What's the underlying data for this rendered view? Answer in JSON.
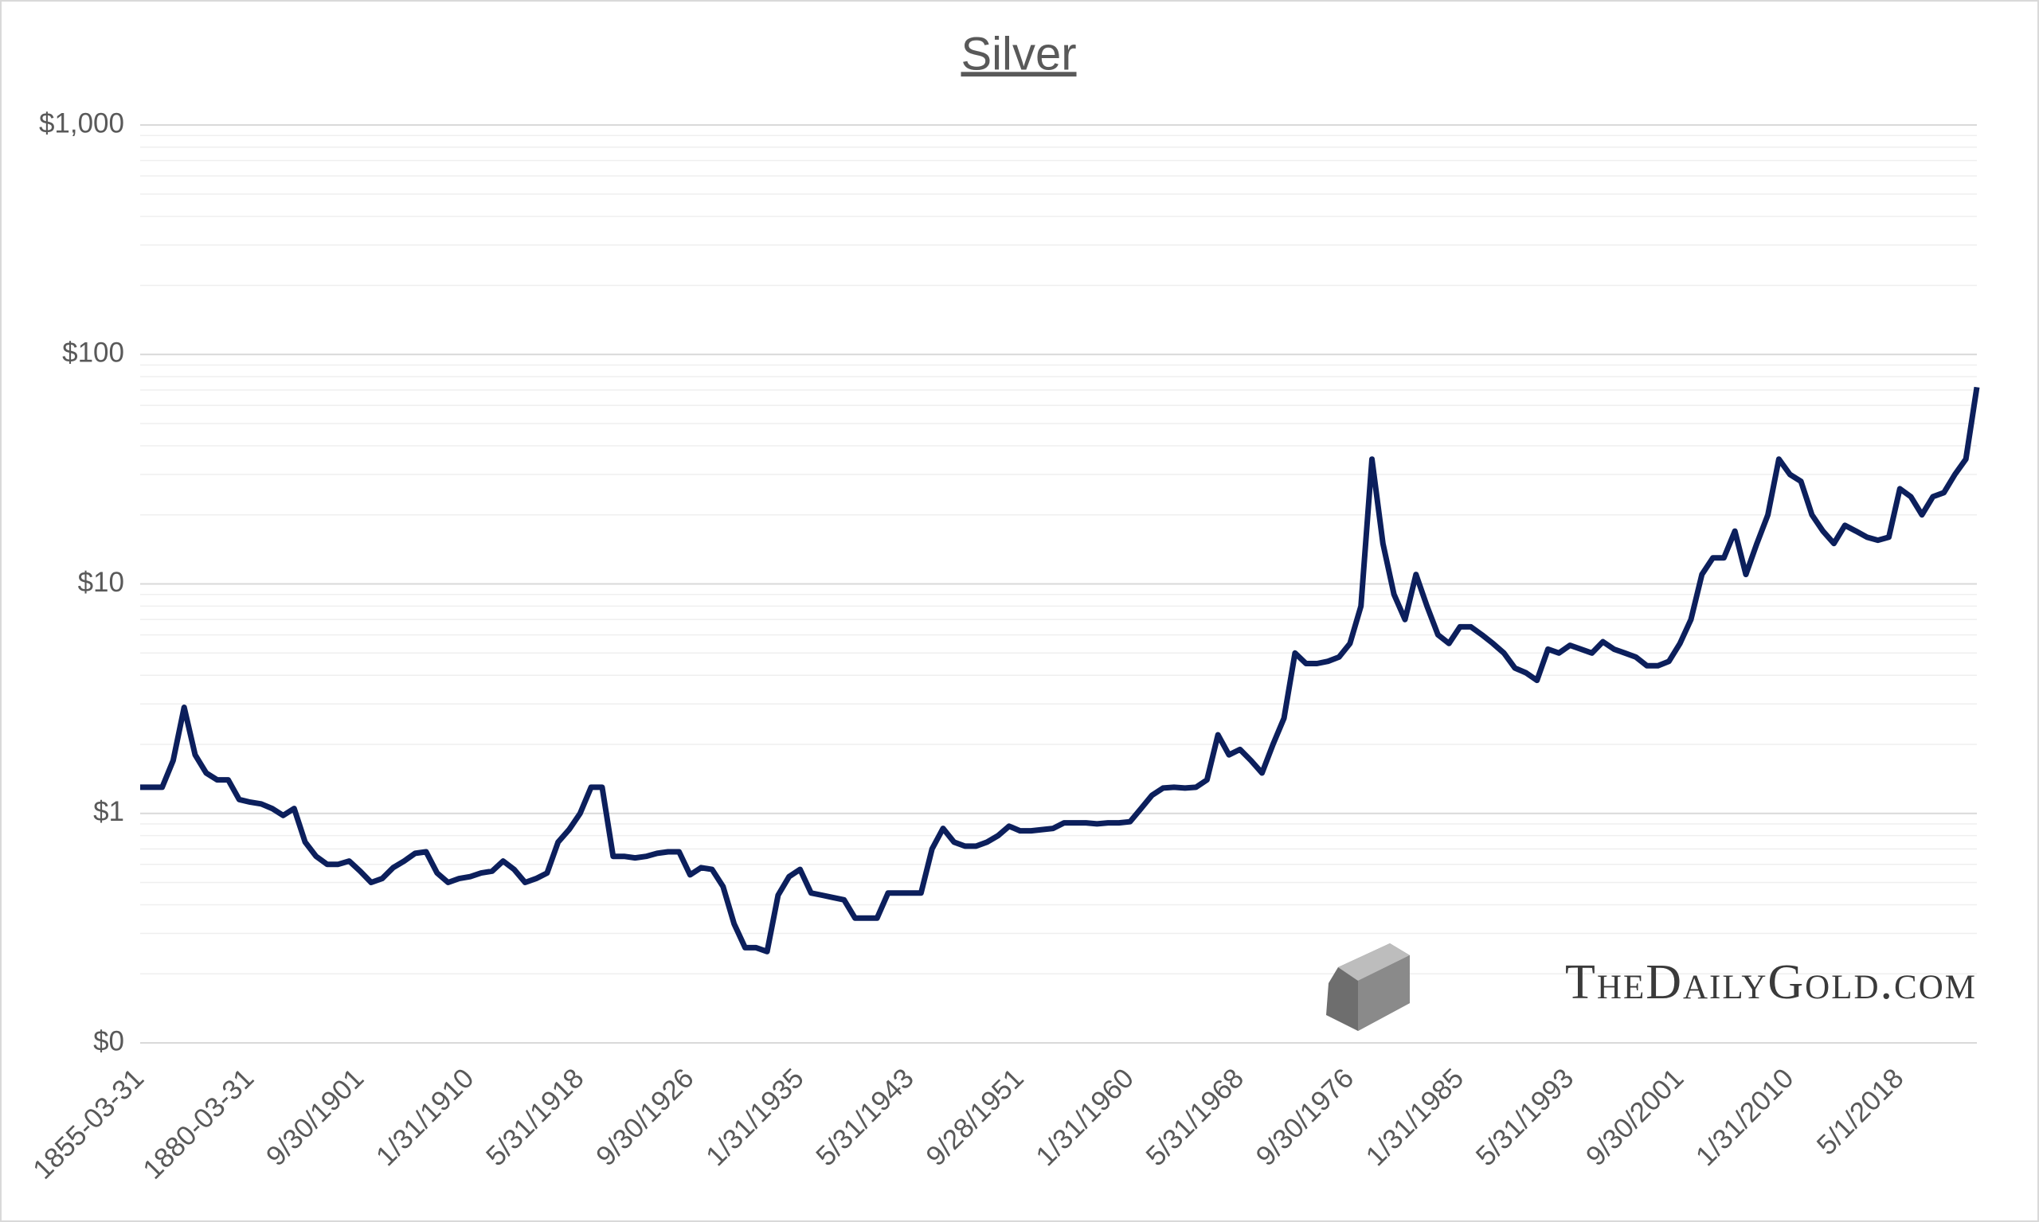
{
  "chart_data": {
    "type": "line",
    "title": "Silver",
    "watermark": "TheDailyGold.com",
    "log_scale": true,
    "grid": true,
    "minor_grid": true,
    "ylim": [
      0.1,
      1000
    ],
    "yticks": [
      {
        "value": 0.1,
        "label": "$0"
      },
      {
        "value": 1,
        "label": "$1"
      },
      {
        "value": 10,
        "label": "$10"
      },
      {
        "value": 100,
        "label": "$100"
      },
      {
        "value": 1000,
        "label": "$1,000"
      }
    ],
    "categories": [
      "1855-03-31",
      null,
      null,
      null,
      null,
      null,
      null,
      null,
      null,
      null,
      "1880-03-31",
      null,
      null,
      null,
      null,
      null,
      null,
      null,
      null,
      null,
      "9/30/1901",
      null,
      null,
      null,
      null,
      null,
      null,
      null,
      null,
      null,
      "1/31/1910",
      null,
      null,
      null,
      null,
      null,
      null,
      null,
      null,
      null,
      "5/31/1918",
      null,
      null,
      null,
      null,
      null,
      null,
      null,
      null,
      null,
      "9/30/1926",
      null,
      null,
      null,
      null,
      null,
      null,
      null,
      null,
      null,
      "1/31/1935",
      null,
      null,
      null,
      null,
      null,
      null,
      null,
      null,
      null,
      "5/31/1943",
      null,
      null,
      null,
      null,
      null,
      null,
      null,
      null,
      null,
      "9/28/1951",
      null,
      null,
      null,
      null,
      null,
      null,
      null,
      null,
      null,
      "1/31/1960",
      null,
      null,
      null,
      null,
      null,
      null,
      null,
      null,
      null,
      "5/31/1968",
      null,
      null,
      null,
      null,
      null,
      null,
      null,
      null,
      null,
      "9/30/1976",
      null,
      null,
      null,
      null,
      null,
      null,
      null,
      null,
      null,
      "1/31/1985",
      null,
      null,
      null,
      null,
      null,
      null,
      null,
      null,
      null,
      "5/31/1993",
      null,
      null,
      null,
      null,
      null,
      null,
      null,
      null,
      null,
      "9/30/2001",
      null,
      null,
      null,
      null,
      null,
      null,
      null,
      null,
      null,
      "1/31/2010",
      null,
      null,
      null,
      null,
      null,
      null,
      null,
      null,
      null,
      "5/1/2018",
      null,
      null,
      null,
      null,
      null,
      null,
      null
    ],
    "series": [
      {
        "name": "Silver",
        "color": "#0c1f5c",
        "values": [
          1.3,
          1.3,
          1.3,
          1.7,
          2.9,
          1.8,
          1.5,
          1.4,
          1.4,
          1.15,
          1.12,
          1.1,
          1.05,
          0.98,
          1.05,
          0.75,
          0.65,
          0.6,
          0.6,
          0.62,
          0.56,
          0.5,
          0.52,
          0.58,
          0.62,
          0.67,
          0.68,
          0.55,
          0.5,
          0.52,
          0.53,
          0.55,
          0.56,
          0.62,
          0.57,
          0.5,
          0.52,
          0.55,
          0.75,
          0.85,
          1.0,
          1.3,
          1.3,
          0.65,
          0.65,
          0.64,
          0.65,
          0.67,
          0.68,
          0.68,
          0.54,
          0.58,
          0.57,
          0.48,
          0.33,
          0.26,
          0.26,
          0.25,
          0.44,
          0.53,
          0.57,
          0.45,
          0.44,
          0.43,
          0.42,
          0.35,
          0.35,
          0.35,
          0.45,
          0.45,
          0.45,
          0.45,
          0.7,
          0.86,
          0.75,
          0.72,
          0.72,
          0.75,
          0.8,
          0.88,
          0.84,
          0.84,
          0.85,
          0.86,
          0.91,
          0.91,
          0.91,
          0.9,
          0.91,
          0.91,
          0.92,
          1.05,
          1.2,
          1.29,
          1.3,
          1.29,
          1.3,
          1.4,
          2.2,
          1.8,
          1.9,
          1.7,
          1.5,
          2.0,
          2.6,
          5.0,
          4.5,
          4.5,
          4.6,
          4.8,
          5.5,
          8.0,
          35,
          15,
          9,
          7,
          11,
          8,
          6,
          5.5,
          6.5,
          6.5,
          6,
          5.5,
          5,
          4.3,
          4.1,
          3.8,
          5.2,
          5.0,
          5.4,
          5.2,
          5.0,
          5.6,
          5.2,
          5.0,
          4.8,
          4.4,
          4.4,
          4.6,
          5.5,
          7,
          11,
          13,
          13,
          17,
          11,
          15,
          20,
          35,
          30,
          28,
          20,
          17,
          15,
          18,
          17,
          16,
          15.5,
          16,
          26,
          24,
          20,
          24,
          25,
          30,
          35,
          72
        ]
      }
    ]
  }
}
